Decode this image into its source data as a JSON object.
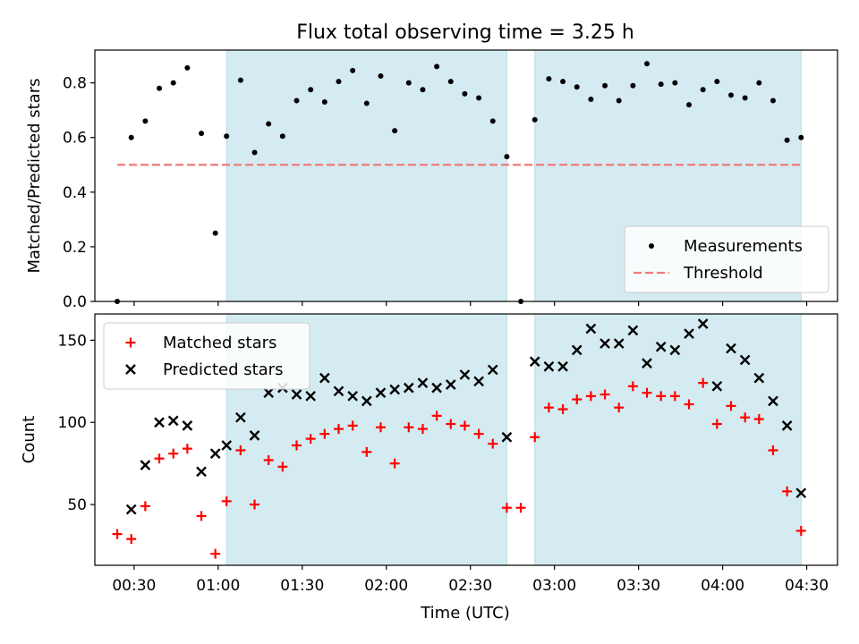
{
  "chart_data": {
    "type": "scatter",
    "title": "Flux total observing time = 3.25 h",
    "xlabel": "Time (UTC)",
    "x_ticks": [
      "00:30",
      "01:00",
      "01:30",
      "02:00",
      "02:30",
      "03:00",
      "03:30",
      "04:00",
      "04:30"
    ],
    "x_range": [
      "00:16",
      "04:41"
    ],
    "shaded_intervals": [
      [
        "01:03",
        "02:43"
      ],
      [
        "02:53",
        "04:28"
      ]
    ],
    "shade_color": "#d4ebf1",
    "panels": [
      {
        "ylabel": "Matched/Predicted stars",
        "ylim": [
          0,
          0.92
        ],
        "y_ticks": [
          "0.0",
          "0.2",
          "0.4",
          "0.6",
          "0.8"
        ],
        "legend_position": "lower right",
        "threshold": {
          "name": "Threshold",
          "value": 0.5,
          "x_range": [
            "00:24",
            "04:28"
          ],
          "color": "#f07a7a"
        },
        "series": [
          {
            "name": "Measurements",
            "marker": "dot",
            "color": "#000000",
            "x": [
              "00:24",
              "00:29",
              "00:34",
              "00:39",
              "00:44",
              "00:49",
              "00:54",
              "00:59",
              "01:03",
              "01:08",
              "01:13",
              "01:18",
              "01:23",
              "01:28",
              "01:33",
              "01:38",
              "01:43",
              "01:48",
              "01:53",
              "01:58",
              "02:03",
              "02:08",
              "02:13",
              "02:18",
              "02:23",
              "02:28",
              "02:33",
              "02:38",
              "02:43",
              "02:48",
              "02:53",
              "02:58",
              "03:03",
              "03:08",
              "03:13",
              "03:18",
              "03:23",
              "03:28",
              "03:33",
              "03:38",
              "03:43",
              "03:48",
              "03:53",
              "03:58",
              "04:03",
              "04:08",
              "04:13",
              "04:18",
              "04:23",
              "04:28"
            ],
            "y": [
              0.0,
              0.6,
              0.66,
              0.78,
              0.8,
              0.855,
              0.615,
              0.25,
              0.605,
              0.81,
              0.545,
              0.65,
              0.605,
              0.735,
              0.775,
              0.73,
              0.805,
              0.845,
              0.725,
              0.825,
              0.625,
              0.8,
              0.775,
              0.86,
              0.805,
              0.76,
              0.745,
              0.66,
              0.53,
              0.0,
              0.665,
              0.815,
              0.805,
              0.785,
              0.74,
              0.79,
              0.735,
              0.79,
              0.87,
              0.795,
              0.8,
              0.72,
              0.775,
              0.805,
              0.755,
              0.745,
              0.8,
              0.735,
              0.59,
              0.6
            ]
          }
        ]
      },
      {
        "ylabel": "Count",
        "ylim": [
          13,
          166
        ],
        "y_ticks": [
          "50",
          "100",
          "150"
        ],
        "legend_position": "upper left",
        "series": [
          {
            "name": "Matched stars",
            "marker": "plus",
            "color": "#ff0000",
            "x": [
              "00:24",
              "00:29",
              "00:34",
              "00:39",
              "00:44",
              "00:49",
              "00:54",
              "00:59",
              "01:03",
              "01:08",
              "01:13",
              "01:18",
              "01:23",
              "01:28",
              "01:33",
              "01:38",
              "01:43",
              "01:48",
              "01:53",
              "01:58",
              "02:03",
              "02:08",
              "02:13",
              "02:18",
              "02:23",
              "02:28",
              "02:33",
              "02:38",
              "02:43",
              "02:48",
              "02:53",
              "02:58",
              "03:03",
              "03:08",
              "03:13",
              "03:18",
              "03:23",
              "03:28",
              "03:33",
              "03:38",
              "03:43",
              "03:48",
              "03:53",
              "03:58",
              "04:03",
              "04:08",
              "04:13",
              "04:18",
              "04:23",
              "04:28"
            ],
            "y": [
              32,
              29,
              49,
              78,
              81,
              84,
              43,
              20,
              52,
              83,
              50,
              77,
              73,
              86,
              90,
              93,
              96,
              98,
              82,
              97,
              75,
              97,
              96,
              104,
              99,
              98,
              93,
              87,
              48,
              48,
              91,
              109,
              108,
              114,
              116,
              117,
              109,
              122,
              118,
              116,
              116,
              111,
              124,
              99,
              110,
              103,
              102,
              83,
              58,
              34
            ]
          },
          {
            "name": "Predicted stars",
            "marker": "x",
            "color": "#000000",
            "x": [
              "00:29",
              "00:34",
              "00:39",
              "00:44",
              "00:49",
              "00:54",
              "00:59",
              "01:03",
              "01:08",
              "01:13",
              "01:18",
              "01:23",
              "01:28",
              "01:33",
              "01:38",
              "01:43",
              "01:48",
              "01:53",
              "01:58",
              "02:03",
              "02:08",
              "02:13",
              "02:18",
              "02:23",
              "02:28",
              "02:33",
              "02:38",
              "02:43",
              "02:53",
              "02:58",
              "03:03",
              "03:08",
              "03:13",
              "03:18",
              "03:23",
              "03:28",
              "03:33",
              "03:38",
              "03:43",
              "03:48",
              "03:53",
              "03:58",
              "04:03",
              "04:08",
              "04:13",
              "04:18",
              "04:23",
              "04:28"
            ],
            "y": [
              47,
              74,
              100,
              101,
              98,
              70,
              81,
              86,
              103,
              92,
              118,
              121,
              117,
              116,
              127,
              119,
              116,
              113,
              118,
              120,
              121,
              124,
              121,
              123,
              129,
              125,
              132,
              91,
              137,
              134,
              134,
              144,
              157,
              148,
              148,
              156,
              136,
              146,
              144,
              154,
              160,
              122,
              145,
              138,
              127,
              113,
              98,
              57
            ]
          }
        ]
      }
    ]
  }
}
